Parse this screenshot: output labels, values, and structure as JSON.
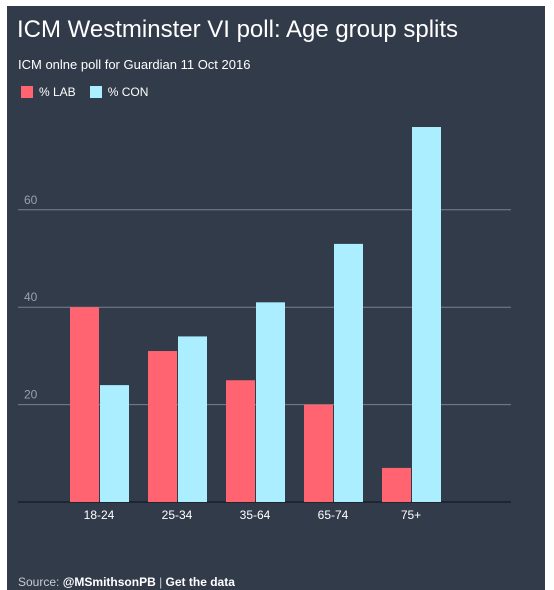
{
  "title": "ICM Westminster VI poll: Age group splits",
  "subtitle": "ICM onlne poll for Guardian 11 Oct 2016",
  "footer": {
    "source_label": "Source: ",
    "source_name": "@MSmithsonPB",
    "separator": " | ",
    "data_link": "Get the data"
  },
  "colors": {
    "background": "#323b4a",
    "lab": "#ff6470",
    "con": "#aaeeff",
    "grid": "#6b7280",
    "text": "#ffffff"
  },
  "chart_data": {
    "type": "bar",
    "title": "ICM Westminster VI poll: Age group splits",
    "subtitle": "ICM onlne poll for Guardian 11 Oct 2016",
    "categories": [
      "18-24",
      "25-34",
      "35-64",
      "65-74",
      "75+"
    ],
    "series": [
      {
        "name": "% LAB",
        "values": [
          40,
          31,
          25,
          20,
          7
        ]
      },
      {
        "name": "% CON",
        "values": [
          24,
          34,
          41,
          53,
          77
        ]
      }
    ],
    "ylim": [
      0,
      80
    ],
    "yticks": [
      "20",
      "40",
      "60"
    ],
    "grid": true,
    "legend": "top-left"
  }
}
